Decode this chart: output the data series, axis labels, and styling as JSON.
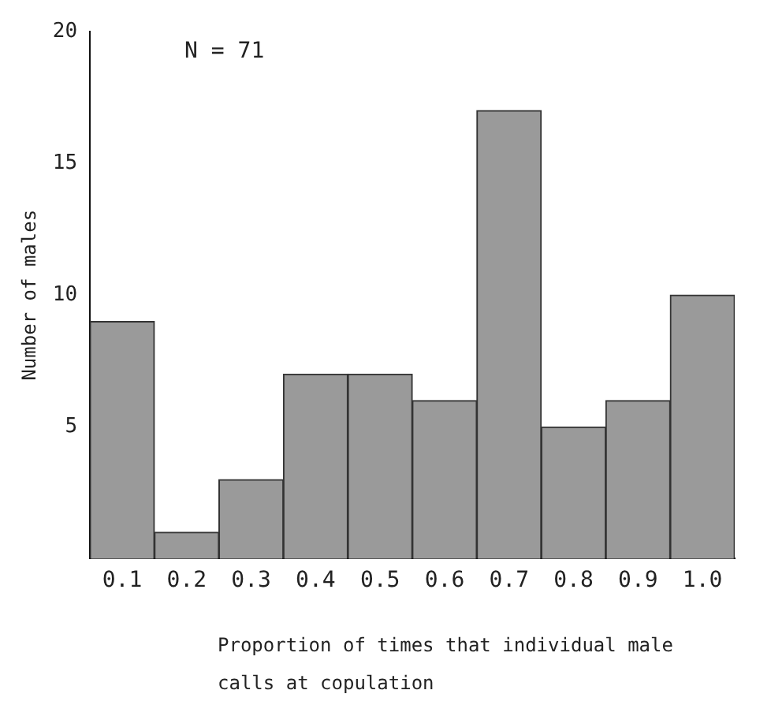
{
  "chart_data": {
    "type": "bar",
    "categories": [
      "0.1",
      "0.2",
      "0.3",
      "0.4",
      "0.5",
      "0.6",
      "0.7",
      "0.8",
      "0.9",
      "1.0"
    ],
    "values": [
      9,
      1,
      3,
      7,
      7,
      6,
      17,
      5,
      6,
      10
    ],
    "color": "#9a9a9a",
    "ylim": [
      0,
      20
    ],
    "yticks": [
      5,
      10,
      15,
      20
    ],
    "grid": false,
    "legend": false,
    "ylabel": "Number of males",
    "xlabel": "Proportion of times that individual male calls at copulation",
    "annotations": [
      "N = 71"
    ]
  }
}
